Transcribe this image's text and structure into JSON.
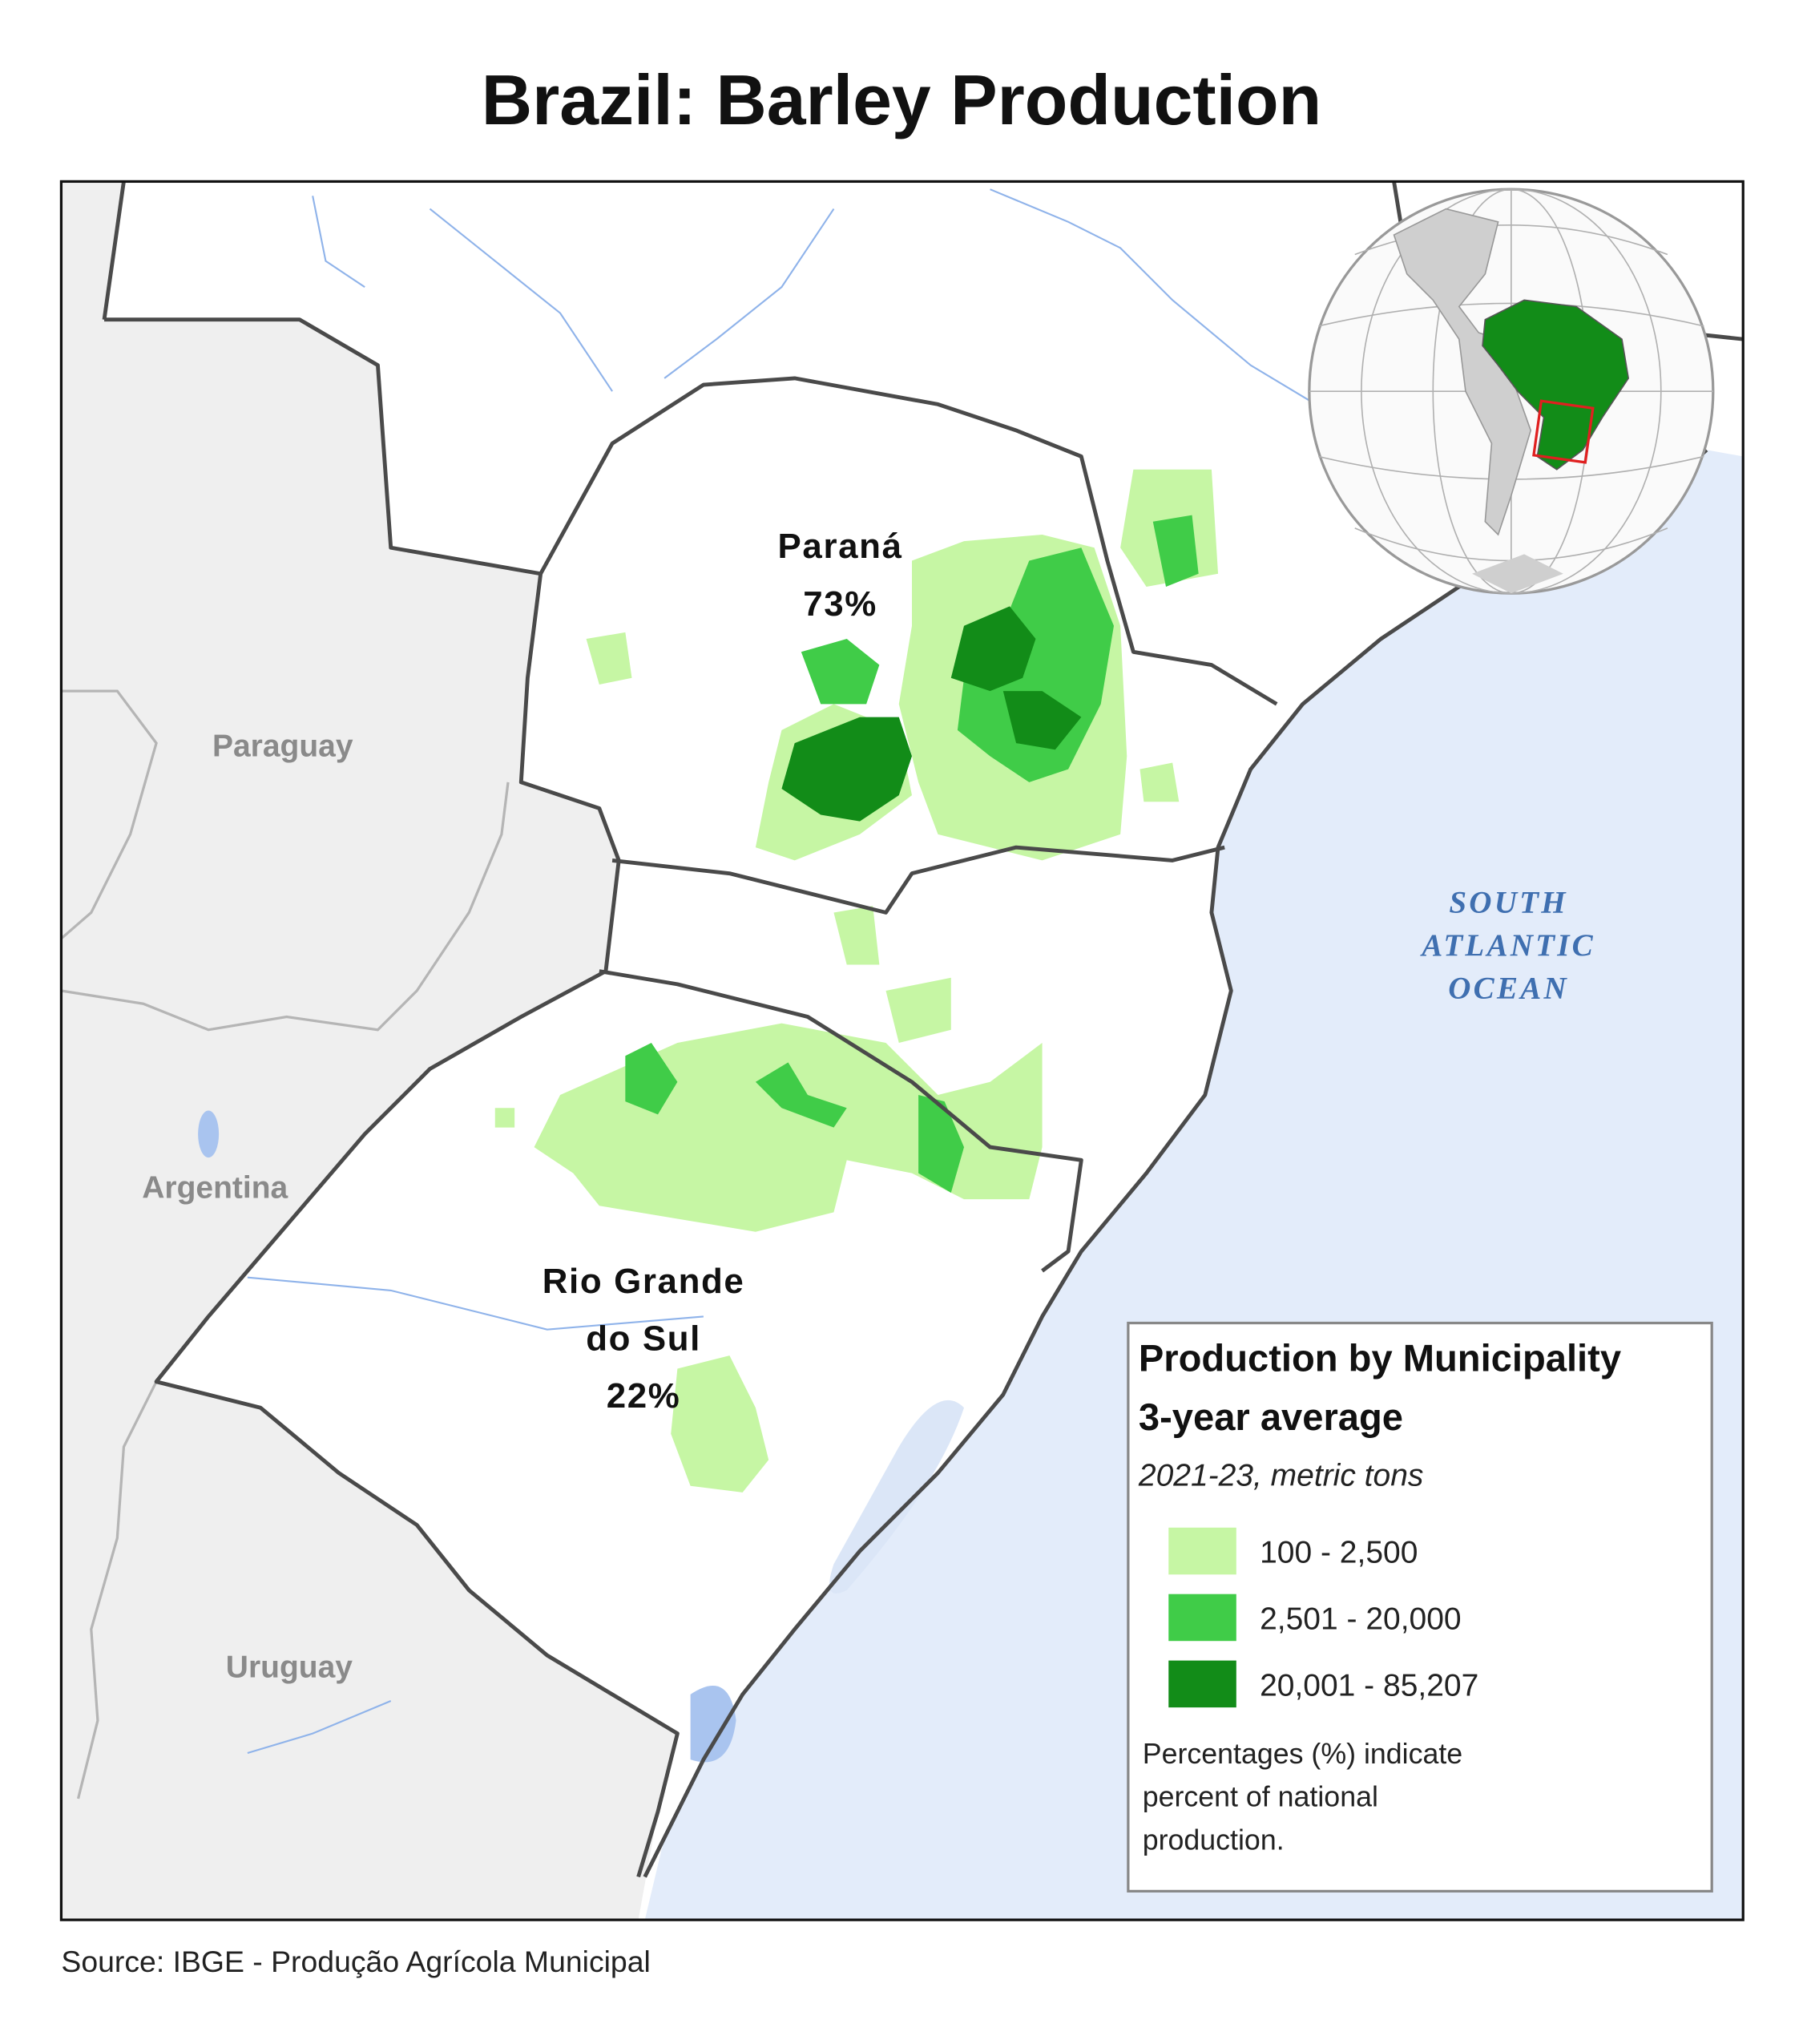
{
  "header": {
    "title": "Brazil: Barley Production"
  },
  "map": {
    "states": [
      {
        "name": "Paraná",
        "share": "73%"
      },
      {
        "name_lines": [
          "Rio Grande",
          "do Sul"
        ],
        "share": "22%"
      }
    ],
    "countries": [
      "Paraguay",
      "Argentina",
      "Uruguay"
    ],
    "ocean_lines": [
      "SOUTH",
      "ATLANTIC",
      "OCEAN"
    ]
  },
  "legend": {
    "title_lines": [
      "Production by Municipality",
      "3-year average"
    ],
    "subtitle": "2021-23, metric tons",
    "items": [
      {
        "label": "100 - 2,500",
        "color": "#c6f6a4"
      },
      {
        "label": "2,501 - 20,000",
        "color": "#40cc48"
      },
      {
        "label": "20,001 - 85,207",
        "color": "#128c18"
      }
    ],
    "note_lines": [
      "Percentages (%) indicate",
      "percent of national",
      "production."
    ]
  },
  "footer": {
    "source": "Source: IBGE - Produção Agrícola Municipal"
  }
}
